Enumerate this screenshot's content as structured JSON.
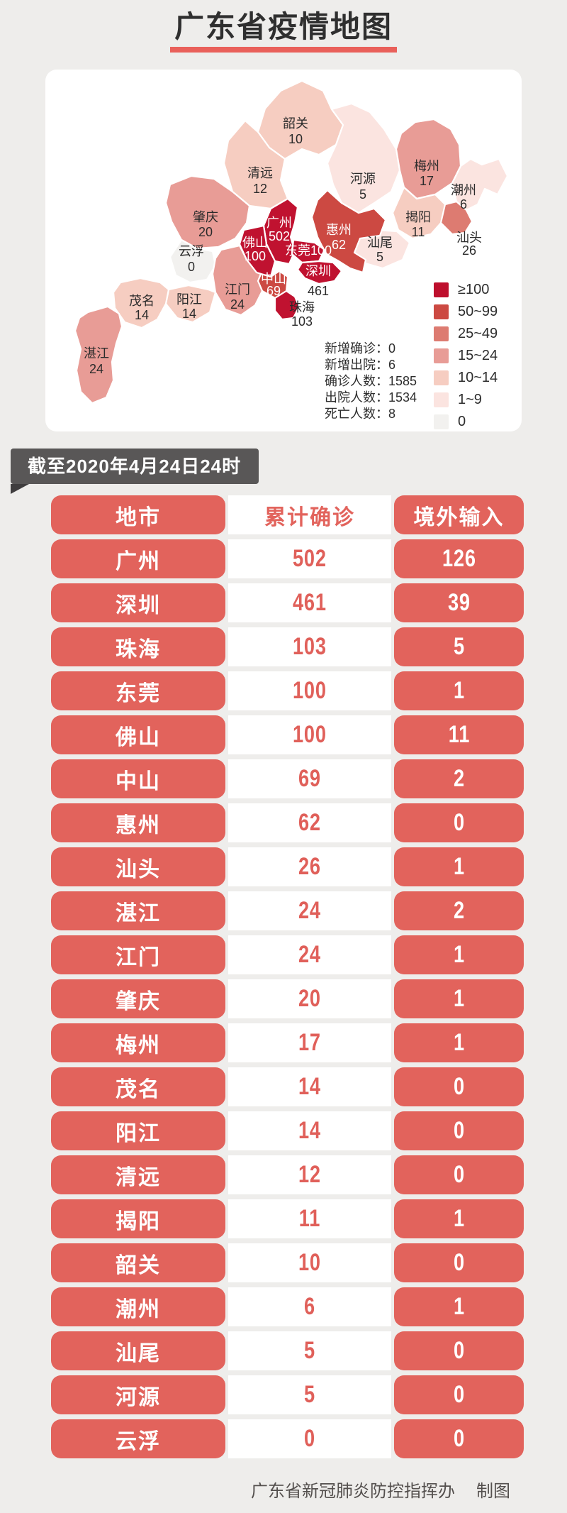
{
  "page": {
    "background": "#EEEDEB",
    "title": "广东省疫情地图",
    "title_underline_color": "#E9605A",
    "footer_org": "广东省新冠肺炎防控指挥办",
    "footer_suffix": "制图"
  },
  "banner": {
    "text": "截至2020年4月24日24时",
    "background": "#595757"
  },
  "map": {
    "stats_separator": "：",
    "stats": [
      {
        "label": "新增确诊",
        "value": "0"
      },
      {
        "label": "新增出院",
        "value": "6"
      },
      {
        "label": "确诊人数",
        "value": "1585"
      },
      {
        "label": "出院人数",
        "value": "1534"
      },
      {
        "label": "死亡人数",
        "value": "8"
      }
    ],
    "legend": [
      {
        "label": "≥100",
        "color": "#BE0F2D"
      },
      {
        "label": "50~99",
        "color": "#CC4942"
      },
      {
        "label": "25~49",
        "color": "#DD7B71"
      },
      {
        "label": "15~24",
        "color": "#E89C96"
      },
      {
        "label": "10~14",
        "color": "#F6CDC1"
      },
      {
        "label": "1~9",
        "color": "#FBE4E0"
      },
      {
        "label": "0",
        "color": "#F2F1EF"
      }
    ],
    "regions": [
      {
        "name": "韶关",
        "value": "10",
        "color": "#F6CDC1"
      },
      {
        "name": "清远",
        "value": "12",
        "color": "#F6CDC1"
      },
      {
        "name": "河源",
        "value": "5",
        "color": "#FBE4E0"
      },
      {
        "name": "梅州",
        "value": "17",
        "color": "#E89C96"
      },
      {
        "name": "潮州",
        "value": "6",
        "color": "#FBE4E0"
      },
      {
        "name": "揭阳",
        "value": "11",
        "color": "#F6CDC1"
      },
      {
        "name": "汕头",
        "value": "26",
        "color": "#DD7B71"
      },
      {
        "name": "汕尾",
        "value": "5",
        "color": "#FBE4E0"
      },
      {
        "name": "惠州",
        "value": "62",
        "color": "#CC4942"
      },
      {
        "name": "肇庆",
        "value": "20",
        "color": "#E89C96"
      },
      {
        "name": "云浮",
        "value": "0",
        "color": "#F2F1EF"
      },
      {
        "name": "广州",
        "value": "502",
        "color": "#C01230"
      },
      {
        "name": "佛山",
        "value": "100",
        "color": "#C01230"
      },
      {
        "name": "东莞",
        "value": "100",
        "color": "#C01230"
      },
      {
        "name": "深圳",
        "value": "461",
        "color": "#C01230"
      },
      {
        "name": "中山",
        "value": "69",
        "color": "#CC4942"
      },
      {
        "name": "珠海",
        "value": "103",
        "color": "#C01230"
      },
      {
        "name": "江门",
        "value": "24",
        "color": "#E89C96"
      },
      {
        "name": "阳江",
        "value": "14",
        "color": "#F6CDC1"
      },
      {
        "name": "茂名",
        "value": "14",
        "color": "#F6CDC1"
      },
      {
        "name": "湛江",
        "value": "24",
        "color": "#E89C96"
      }
    ]
  },
  "table": {
    "headers": [
      "地市",
      "累计确诊",
      "境外输入"
    ],
    "accent_color": "#E2635C",
    "number_color": "#E0605A",
    "rows": [
      {
        "city": "广州",
        "confirmed": "502",
        "imported": "126"
      },
      {
        "city": "深圳",
        "confirmed": "461",
        "imported": "39"
      },
      {
        "city": "珠海",
        "confirmed": "103",
        "imported": "5"
      },
      {
        "city": "东莞",
        "confirmed": "100",
        "imported": "1"
      },
      {
        "city": "佛山",
        "confirmed": "100",
        "imported": "11"
      },
      {
        "city": "中山",
        "confirmed": "69",
        "imported": "2"
      },
      {
        "city": "惠州",
        "confirmed": "62",
        "imported": "0"
      },
      {
        "city": "汕头",
        "confirmed": "26",
        "imported": "1"
      },
      {
        "city": "湛江",
        "confirmed": "24",
        "imported": "2"
      },
      {
        "city": "江门",
        "confirmed": "24",
        "imported": "1"
      },
      {
        "city": "肇庆",
        "confirmed": "20",
        "imported": "1"
      },
      {
        "city": "梅州",
        "confirmed": "17",
        "imported": "1"
      },
      {
        "city": "茂名",
        "confirmed": "14",
        "imported": "0"
      },
      {
        "city": "阳江",
        "confirmed": "14",
        "imported": "0"
      },
      {
        "city": "清远",
        "confirmed": "12",
        "imported": "0"
      },
      {
        "city": "揭阳",
        "confirmed": "11",
        "imported": "1"
      },
      {
        "city": "韶关",
        "confirmed": "10",
        "imported": "0"
      },
      {
        "city": "潮州",
        "confirmed": "6",
        "imported": "1"
      },
      {
        "city": "汕尾",
        "confirmed": "5",
        "imported": "0"
      },
      {
        "city": "河源",
        "confirmed": "5",
        "imported": "0"
      },
      {
        "city": "云浮",
        "confirmed": "0",
        "imported": "0"
      }
    ]
  },
  "chart_data": [
    {
      "type": "heatmap",
      "subtype": "choropleth-map",
      "title": "广东省疫情地图",
      "as_of": "截至2020年4月24日24时",
      "legend_bins": [
        "≥100",
        "50~99",
        "25~49",
        "15~24",
        "10~14",
        "1~9",
        "0"
      ],
      "categories": [
        "韶关",
        "清远",
        "河源",
        "梅州",
        "潮州",
        "揭阳",
        "汕头",
        "汕尾",
        "惠州",
        "肇庆",
        "云浮",
        "广州",
        "佛山",
        "东莞",
        "深圳",
        "中山",
        "珠海",
        "江门",
        "阳江",
        "茂名",
        "湛江"
      ],
      "values": [
        10,
        12,
        5,
        17,
        6,
        11,
        26,
        5,
        62,
        20,
        0,
        502,
        100,
        100,
        461,
        69,
        103,
        24,
        14,
        14,
        24
      ],
      "annotations": {
        "新增确诊": 0,
        "新增出院": 6,
        "确诊人数": 1585,
        "出院人数": 1534,
        "死亡人数": 8
      }
    },
    {
      "type": "table",
      "columns": [
        "地市",
        "累计确诊",
        "境外输入"
      ],
      "rows": [
        [
          "广州",
          502,
          126
        ],
        [
          "深圳",
          461,
          39
        ],
        [
          "珠海",
          103,
          5
        ],
        [
          "东莞",
          100,
          1
        ],
        [
          "佛山",
          100,
          11
        ],
        [
          "中山",
          69,
          2
        ],
        [
          "惠州",
          62,
          0
        ],
        [
          "汕头",
          26,
          1
        ],
        [
          "湛江",
          24,
          2
        ],
        [
          "江门",
          24,
          1
        ],
        [
          "肇庆",
          20,
          1
        ],
        [
          "梅州",
          17,
          1
        ],
        [
          "茂名",
          14,
          0
        ],
        [
          "阳江",
          14,
          0
        ],
        [
          "清远",
          12,
          0
        ],
        [
          "揭阳",
          11,
          1
        ],
        [
          "韶关",
          10,
          0
        ],
        [
          "潮州",
          6,
          1
        ],
        [
          "汕尾",
          5,
          0
        ],
        [
          "河源",
          5,
          0
        ],
        [
          "云浮",
          0,
          0
        ]
      ],
      "credit": "广东省新冠肺炎防控指挥办 制图"
    }
  ]
}
